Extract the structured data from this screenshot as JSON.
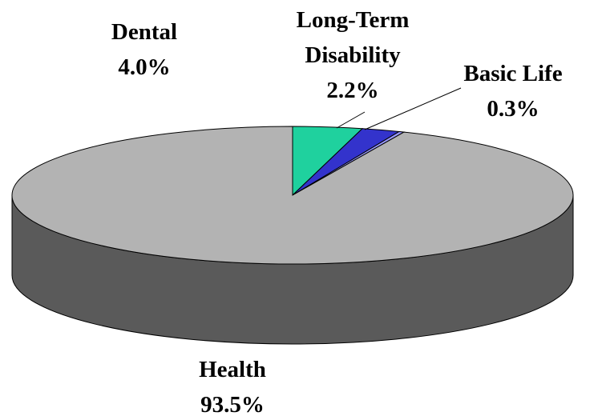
{
  "chart_data": {
    "type": "pie3d",
    "categories": [
      "Dental",
      "Long-Term Disability",
      "Basic Life",
      "Health"
    ],
    "values": [
      4.0,
      2.2,
      0.3,
      93.5
    ],
    "value_labels": [
      "4.0%",
      "2.2%",
      "0.3%",
      "93.5%"
    ],
    "colors": [
      "#1fd19e",
      "#3333cc",
      "#9999ff",
      "#b3b3b3"
    ]
  }
}
